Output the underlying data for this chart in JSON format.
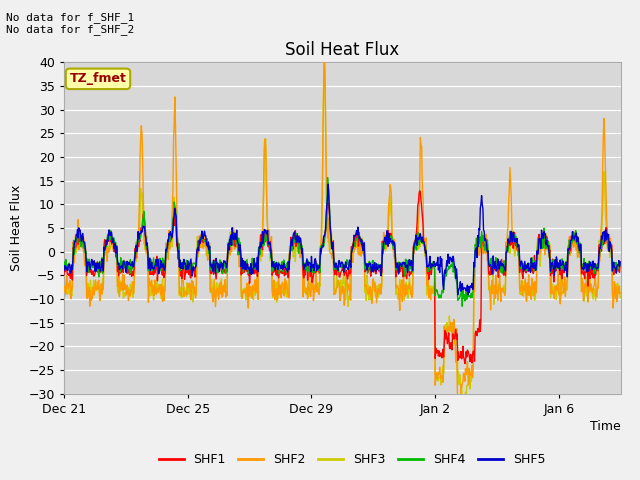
{
  "title": "Soil Heat Flux",
  "ylabel": "Soil Heat Flux",
  "xlabel": "Time",
  "annotation_text": "No data for f_SHF_1\nNo data for f_SHF_2",
  "legend_box_text": "TZ_fmet",
  "ylim": [
    -30,
    40
  ],
  "yticks": [
    -30,
    -25,
    -20,
    -15,
    -10,
    -5,
    0,
    5,
    10,
    15,
    20,
    25,
    30,
    35,
    40
  ],
  "series_colors": {
    "SHF1": "#ff0000",
    "SHF2": "#ff9900",
    "SHF3": "#cccc00",
    "SHF4": "#00bb00",
    "SHF5": "#0000cc"
  },
  "bg_color": "#d8d8d8",
  "fig_color": "#f0f0f0",
  "line_width": 1.0,
  "title_fontsize": 12,
  "axis_fontsize": 9,
  "tick_fontsize": 9,
  "legend_fontsize": 9
}
